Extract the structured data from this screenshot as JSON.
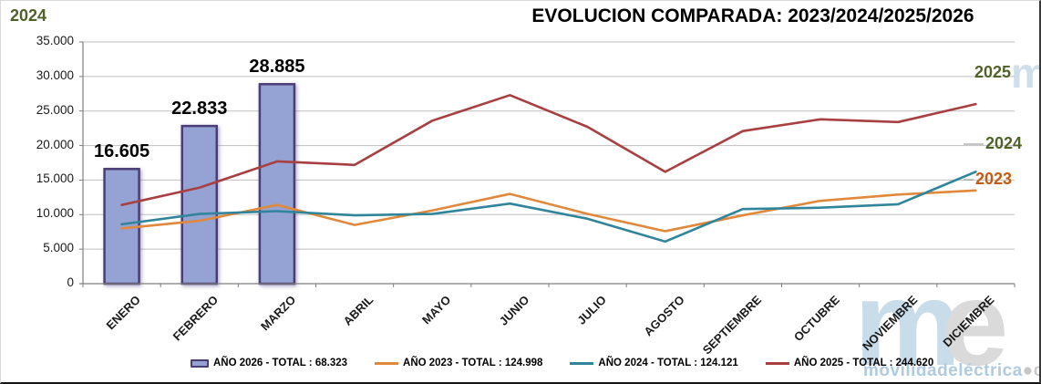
{
  "header": {
    "corner_year_label": "2024",
    "title": "EVOLUCION COMPARADA: 2023/2024/2025/2026"
  },
  "side_labels": {
    "s2025": "2025",
    "s2024": "2024",
    "s2023": "2023"
  },
  "chart_data": {
    "type": "combo-bar-line",
    "title": "EVOLUCION COMPARADA: 2023/2024/2025/2026",
    "categories": [
      "ENERO",
      "FEBRERO",
      "MARZO",
      "ABRIL",
      "MAYO",
      "JUNIO",
      "JULIO",
      "AGOSTO",
      "SEPTIEMBRE",
      "OCTUBRE",
      "NOVIEMBRE",
      "DICIEMBRE"
    ],
    "y_ticks": [
      "35.000",
      "30.000",
      "25.000",
      "20.000",
      "15.000",
      "10.000",
      "5.000",
      "0"
    ],
    "ylim": [
      0,
      35000
    ],
    "grid": true,
    "legend_position": "bottom",
    "bar_series": {
      "name": "AÑO 2026",
      "total": "68.323",
      "fill": "#94a2d4",
      "border": "#4b3e75",
      "values": [
        16605,
        22833,
        28885
      ],
      "labels": [
        "16.605",
        "22.833",
        "28.885"
      ]
    },
    "series": [
      {
        "name": "AÑO 2023",
        "total": "124.998",
        "color": "#e0893c",
        "values": [
          8000,
          9100,
          11400,
          8500,
          10600,
          13000,
          10100,
          7600,
          9900,
          12000,
          12900,
          13500
        ]
      },
      {
        "name": "AÑO 2024",
        "total": "124.121",
        "color": "#31859b",
        "values": [
          8600,
          10100,
          10500,
          9900,
          10100,
          11600,
          9400,
          6100,
          10800,
          11000,
          11500,
          16200
        ]
      },
      {
        "name": "AÑO 2025",
        "total": "244.620",
        "color": "#a84042",
        "values": [
          11400,
          13900,
          17700,
          17200,
          23600,
          27300,
          22700,
          16200,
          22100,
          23800,
          23400,
          26000
        ]
      }
    ]
  },
  "legend": {
    "items": [
      {
        "label": "AÑO 2026 - TOTAL : 68.323"
      },
      {
        "label": "AÑO 2023 - TOTAL : 124.998"
      },
      {
        "label": "AÑO 2024 - TOTAL : 124.121"
      },
      {
        "label": "AÑO 2025 - TOTAL : 244.620"
      }
    ]
  },
  "watermark": {
    "top_m": "m",
    "big_m": "m",
    "big_e": "e",
    "site": "movilidadeléctrica",
    "dot": "●",
    "tld": "com"
  }
}
